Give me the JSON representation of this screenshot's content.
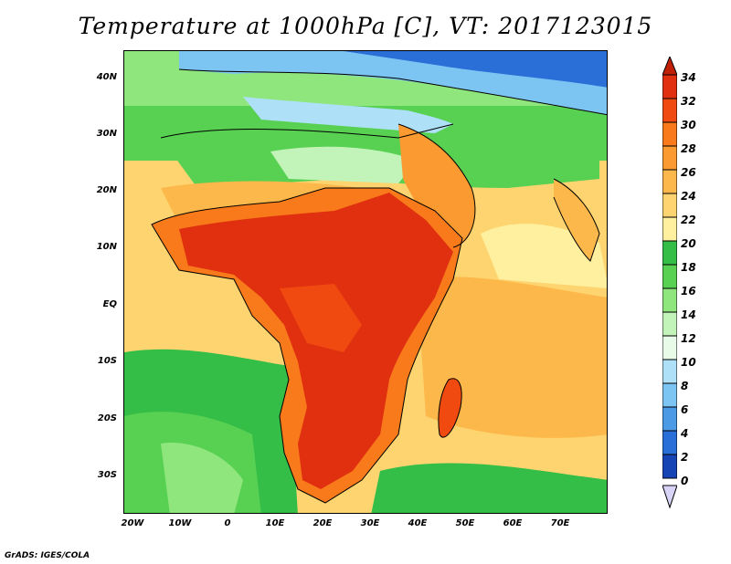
{
  "title": "Temperature at 1000hPa [C], VT: 2017123015",
  "credit": "GrADS: IGES/COLA",
  "map": {
    "lat_labels": [
      "40N",
      "30N",
      "20N",
      "10N",
      "EQ",
      "10S",
      "20S",
      "30S"
    ],
    "lon_labels": [
      "20W",
      "10W",
      "0",
      "10E",
      "20E",
      "30E",
      "40E",
      "50E",
      "60E",
      "70E"
    ]
  },
  "colorbar": {
    "levels": [
      "34",
      "32",
      "30",
      "28",
      "26",
      "24",
      "22",
      "20",
      "18",
      "16",
      "14",
      "12",
      "10",
      "8",
      "6",
      "4",
      "2",
      "0"
    ],
    "colors": [
      "#e03010",
      "#f04a10",
      "#f87a1a",
      "#fa9a30",
      "#fcb84a",
      "#fdd470",
      "#fef09e",
      "#34be48",
      "#58d052",
      "#8ee67c",
      "#c2f4ba",
      "#e8fae8",
      "#aee0f8",
      "#7cc4f2",
      "#4a9ae6",
      "#2a6ed8",
      "#1644b4",
      "#0a1c88"
    ],
    "top_arrow_color": "#c02008",
    "bottom_arrow_color": "#d8d4f8"
  },
  "colors": {
    "ocean_tropical": "#fdd470",
    "ocean_south": "#58d052",
    "africa_hot": "#e03010",
    "africa_warm": "#f87a1a",
    "north_cool": "#8ee67c",
    "europe_cold": "#4a9ae6"
  }
}
